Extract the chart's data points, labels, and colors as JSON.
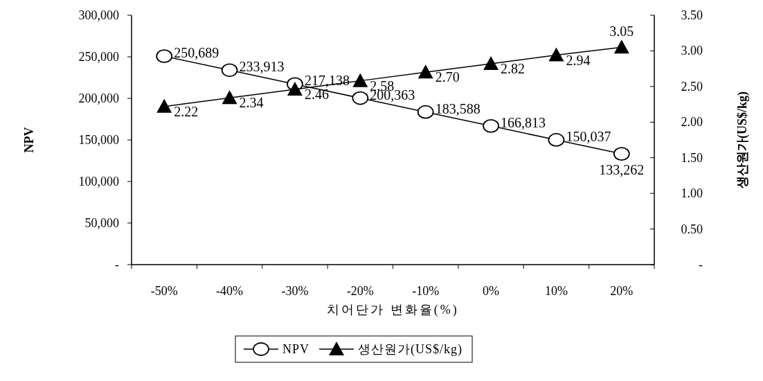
{
  "chart_data": {
    "type": "line",
    "xlabel": "치어단가 변화율(%)",
    "ylabel": "NPV",
    "y2label": "생산원가(US$/kg)",
    "categories": [
      "-50%",
      "-40%",
      "-30%",
      "-20%",
      "-10%",
      "0%",
      "10%",
      "20%"
    ],
    "ylim": [
      0,
      300000
    ],
    "yticks": [
      {
        "value": 0,
        "label": "-"
      },
      {
        "value": 50000,
        "label": "50,000"
      },
      {
        "value": 100000,
        "label": "100,000"
      },
      {
        "value": 150000,
        "label": "150,000"
      },
      {
        "value": 200000,
        "label": "200,000"
      },
      {
        "value": 250000,
        "label": "250,000"
      },
      {
        "value": 300000,
        "label": "300,000"
      }
    ],
    "y2lim": [
      0,
      3.5
    ],
    "y2ticks": [
      {
        "value": 0,
        "label": "-"
      },
      {
        "value": 0.5,
        "label": "0.50"
      },
      {
        "value": 1,
        "label": "1.00"
      },
      {
        "value": 1.5,
        "label": "1.50"
      },
      {
        "value": 2,
        "label": "2.00"
      },
      {
        "value": 2.5,
        "label": "2.50"
      },
      {
        "value": 3,
        "label": "3.00"
      },
      {
        "value": 3.5,
        "label": "3.50"
      }
    ],
    "grid": false,
    "legend": "bottom",
    "line_style": "solid",
    "series": [
      {
        "name": "NPV",
        "color": "#000000",
        "marker": "circle",
        "values": [
          250689,
          233913,
          217138,
          200363,
          183588,
          166813,
          150037,
          133262
        ],
        "value_labels": [
          "250,689",
          "233,913",
          "217,138",
          "200,363",
          "183,588",
          "166,813",
          "150,037",
          "133,262"
        ]
      },
      {
        "name": "생산원가(US$/kg)",
        "color": "#000000",
        "marker": "triangle",
        "axis": "y2",
        "values": [
          2.22,
          2.34,
          2.46,
          2.58,
          2.7,
          2.82,
          2.94,
          3.05
        ],
        "value_labels": [
          "2.22",
          "2.34",
          "2.46",
          "2.58",
          "2.70",
          "2.82",
          "2.94",
          "3.05"
        ]
      }
    ]
  }
}
